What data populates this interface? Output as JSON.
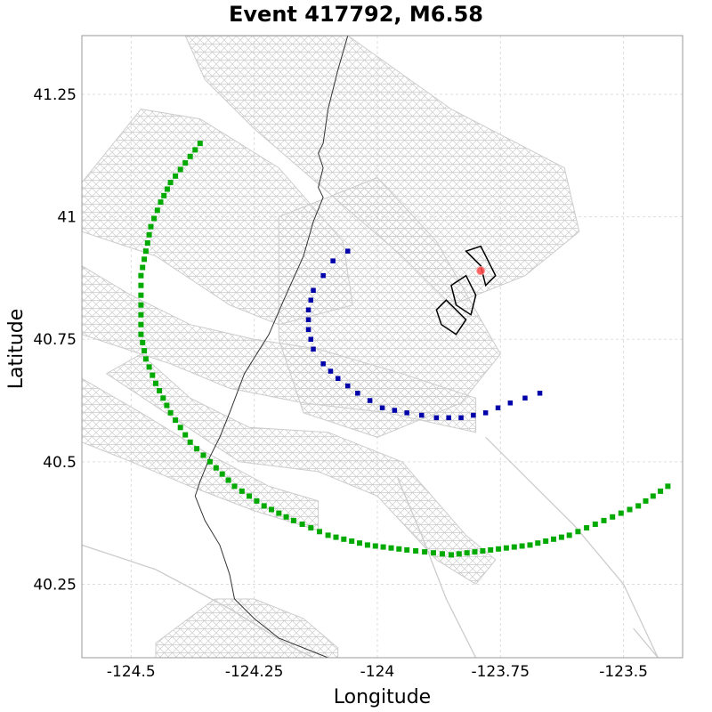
{
  "chart_data": {
    "type": "scatter",
    "title": "Event 417792, M6.58",
    "xlabel": "Longitude",
    "ylabel": "Latitude",
    "xlim": [
      -124.6,
      -123.38
    ],
    "ylim": [
      40.1,
      41.37
    ],
    "grid": true,
    "grid_style": "dashed",
    "x_ticks": [
      -124.5,
      -124.25,
      -124,
      -123.75,
      -123.5
    ],
    "x_tick_labels": [
      "-124.5",
      "-124.25",
      "-124",
      "-123.75",
      "-123.5"
    ],
    "y_ticks": [
      40.25,
      40.5,
      40.75,
      41,
      41.25
    ],
    "y_tick_labels": [
      "40.25",
      "40.5",
      "40.75",
      "41",
      "41.25"
    ],
    "colors": {
      "fault_mesh": "#cccccc",
      "coastline": "#333333",
      "rupture": "#000000",
      "inner_contour": "#0000aa",
      "outer_contour": "#00aa00",
      "hypocenter": "#ff4444",
      "grid": "#dddddd"
    },
    "fault_mesh_sections": [
      {
        "polygon": [
          [
            -124.39,
            41.37
          ],
          [
            -124.06,
            41.37
          ],
          [
            -123.85,
            41.22
          ],
          [
            -123.62,
            41.1
          ],
          [
            -123.59,
            40.97
          ],
          [
            -123.7,
            40.88
          ],
          [
            -123.85,
            40.82
          ],
          [
            -123.95,
            40.92
          ],
          [
            -124.1,
            41.05
          ],
          [
            -124.25,
            41.18
          ],
          [
            -124.35,
            41.28
          ]
        ]
      },
      {
        "polygon": [
          [
            -124.2,
            41.0
          ],
          [
            -124.0,
            41.08
          ],
          [
            -123.88,
            40.95
          ],
          [
            -123.75,
            40.72
          ],
          [
            -123.83,
            40.62
          ],
          [
            -124.0,
            40.55
          ],
          [
            -124.15,
            40.6
          ],
          [
            -124.2,
            40.75
          ]
        ]
      },
      {
        "polygon": [
          [
            -124.6,
            41.07
          ],
          [
            -124.48,
            41.22
          ],
          [
            -124.36,
            41.2
          ],
          [
            -124.2,
            41.1
          ],
          [
            -124.07,
            40.95
          ],
          [
            -124.05,
            40.82
          ],
          [
            -124.2,
            40.78
          ],
          [
            -124.3,
            40.82
          ],
          [
            -124.45,
            40.92
          ],
          [
            -124.6,
            40.97
          ]
        ]
      },
      {
        "polygon": [
          [
            -124.6,
            40.9
          ],
          [
            -124.5,
            40.84
          ],
          [
            -124.38,
            40.78
          ],
          [
            -124.25,
            40.75
          ],
          [
            -124.12,
            40.73
          ],
          [
            -123.95,
            40.68
          ],
          [
            -123.8,
            40.63
          ],
          [
            -123.8,
            40.56
          ],
          [
            -123.98,
            40.6
          ],
          [
            -124.15,
            40.62
          ],
          [
            -124.3,
            40.65
          ],
          [
            -124.42,
            40.7
          ],
          [
            -124.6,
            40.76
          ]
        ]
      },
      {
        "polygon": [
          [
            -124.6,
            40.67
          ],
          [
            -124.48,
            40.6
          ],
          [
            -124.35,
            40.52
          ],
          [
            -124.22,
            40.45
          ],
          [
            -124.12,
            40.42
          ],
          [
            -124.12,
            40.36
          ],
          [
            -124.25,
            40.4
          ],
          [
            -124.38,
            40.45
          ],
          [
            -124.5,
            40.5
          ],
          [
            -124.6,
            40.54
          ]
        ]
      },
      {
        "polygon": [
          [
            -124.55,
            40.68
          ],
          [
            -124.48,
            40.72
          ],
          [
            -124.38,
            40.63
          ],
          [
            -124.26,
            40.57
          ],
          [
            -124.1,
            40.56
          ],
          [
            -123.95,
            40.5
          ],
          [
            -123.82,
            40.35
          ],
          [
            -123.76,
            40.3
          ],
          [
            -123.8,
            40.25
          ],
          [
            -123.88,
            40.3
          ],
          [
            -124.0,
            40.43
          ],
          [
            -124.12,
            40.48
          ],
          [
            -124.28,
            40.5
          ],
          [
            -124.4,
            40.58
          ]
        ]
      },
      {
        "polygon": [
          [
            -124.45,
            40.13
          ],
          [
            -124.33,
            40.22
          ],
          [
            -124.25,
            40.22
          ],
          [
            -124.15,
            40.18
          ],
          [
            -124.08,
            40.12
          ],
          [
            -124.08,
            40.1
          ],
          [
            -124.45,
            40.1
          ]
        ]
      }
    ],
    "coastline": [
      [
        -124.06,
        41.37
      ],
      [
        -124.08,
        41.3
      ],
      [
        -124.1,
        41.22
      ],
      [
        -124.11,
        41.15
      ],
      [
        -124.12,
        41.13
      ],
      [
        -124.11,
        41.1
      ],
      [
        -124.12,
        41.06
      ],
      [
        -124.11,
        41.04
      ],
      [
        -124.13,
        40.99
      ],
      [
        -124.15,
        40.92
      ],
      [
        -124.19,
        40.83
      ],
      [
        -124.22,
        40.76
      ],
      [
        -124.27,
        40.68
      ],
      [
        -124.3,
        40.6
      ],
      [
        -124.32,
        40.55
      ],
      [
        -124.34,
        40.51
      ],
      [
        -124.36,
        40.46
      ],
      [
        -124.37,
        40.43
      ],
      [
        -124.35,
        40.38
      ],
      [
        -124.32,
        40.33
      ],
      [
        -124.3,
        40.27
      ],
      [
        -124.29,
        40.22
      ],
      [
        -124.25,
        40.18
      ],
      [
        -124.2,
        40.14
      ],
      [
        -124.1,
        40.1
      ]
    ],
    "gray_lines": [
      [
        [
          -124.6,
          40.33
        ],
        [
          -124.45,
          40.28
        ],
        [
          -124.3,
          40.2
        ],
        [
          -124.17,
          40.12
        ],
        [
          -124.13,
          40.1
        ]
      ],
      [
        [
          -123.96,
          40.47
        ],
        [
          -123.91,
          40.35
        ],
        [
          -123.86,
          40.22
        ],
        [
          -123.8,
          40.1
        ]
      ],
      [
        [
          -123.78,
          40.55
        ],
        [
          -123.7,
          40.47
        ],
        [
          -123.6,
          40.37
        ],
        [
          -123.5,
          40.25
        ],
        [
          -123.43,
          40.1
        ]
      ],
      [
        [
          -123.48,
          40.16
        ],
        [
          -123.43,
          40.1
        ]
      ]
    ],
    "rupture_triangles": [
      [
        [
          -123.82,
          40.93
        ],
        [
          -123.79,
          40.9
        ],
        [
          -123.78,
          40.86
        ],
        [
          -123.76,
          40.88
        ],
        [
          -123.79,
          40.94
        ]
      ],
      [
        [
          -123.82,
          40.88
        ],
        [
          -123.8,
          40.84
        ],
        [
          -123.81,
          40.8
        ],
        [
          -123.84,
          40.82
        ],
        [
          -123.85,
          40.86
        ]
      ],
      [
        [
          -123.86,
          40.83
        ],
        [
          -123.82,
          40.79
        ],
        [
          -123.84,
          40.76
        ],
        [
          -123.87,
          40.78
        ],
        [
          -123.88,
          40.81
        ]
      ]
    ],
    "hypocenter": {
      "x": -123.79,
      "y": 40.89
    },
    "series": [
      {
        "points": [
          [
            -124.06,
            40.93
          ],
          [
            -124.09,
            40.91
          ],
          [
            -124.11,
            40.88
          ],
          [
            -124.13,
            40.85
          ],
          [
            -124.14,
            40.81
          ],
          [
            -124.14,
            40.77
          ],
          [
            -124.13,
            40.73
          ],
          [
            -124.11,
            40.7
          ],
          [
            -124.08,
            40.67
          ],
          [
            -124.04,
            40.64
          ],
          [
            -123.99,
            40.61
          ],
          [
            -123.94,
            40.6
          ],
          [
            -123.88,
            40.59
          ],
          [
            -123.83,
            40.59
          ],
          [
            -123.78,
            40.6
          ],
          [
            -123.73,
            40.62
          ],
          [
            -123.7,
            40.63
          ],
          [
            -123.67,
            40.64
          ]
        ]
      },
      {
        "points": [
          [
            -124.36,
            41.15
          ],
          [
            -124.39,
            41.11
          ],
          [
            -124.42,
            41.07
          ],
          [
            -124.44,
            41.03
          ],
          [
            -124.46,
            40.98
          ],
          [
            -124.47,
            40.93
          ],
          [
            -124.48,
            40.88
          ],
          [
            -124.48,
            40.82
          ],
          [
            -124.48,
            40.76
          ],
          [
            -124.47,
            40.71
          ],
          [
            -124.45,
            40.66
          ],
          [
            -124.42,
            40.6
          ],
          [
            -124.38,
            40.54
          ],
          [
            -124.34,
            40.5
          ],
          [
            -124.29,
            40.45
          ],
          [
            -124.23,
            40.41
          ],
          [
            -124.17,
            40.38
          ],
          [
            -124.1,
            40.35
          ],
          [
            -124.02,
            40.33
          ],
          [
            -123.94,
            40.32
          ],
          [
            -123.85,
            40.31
          ],
          [
            -123.77,
            40.32
          ],
          [
            -123.69,
            40.33
          ],
          [
            -123.61,
            40.35
          ],
          [
            -123.54,
            40.38
          ],
          [
            -123.47,
            40.41
          ],
          [
            -123.41,
            40.45
          ]
        ]
      }
    ]
  }
}
